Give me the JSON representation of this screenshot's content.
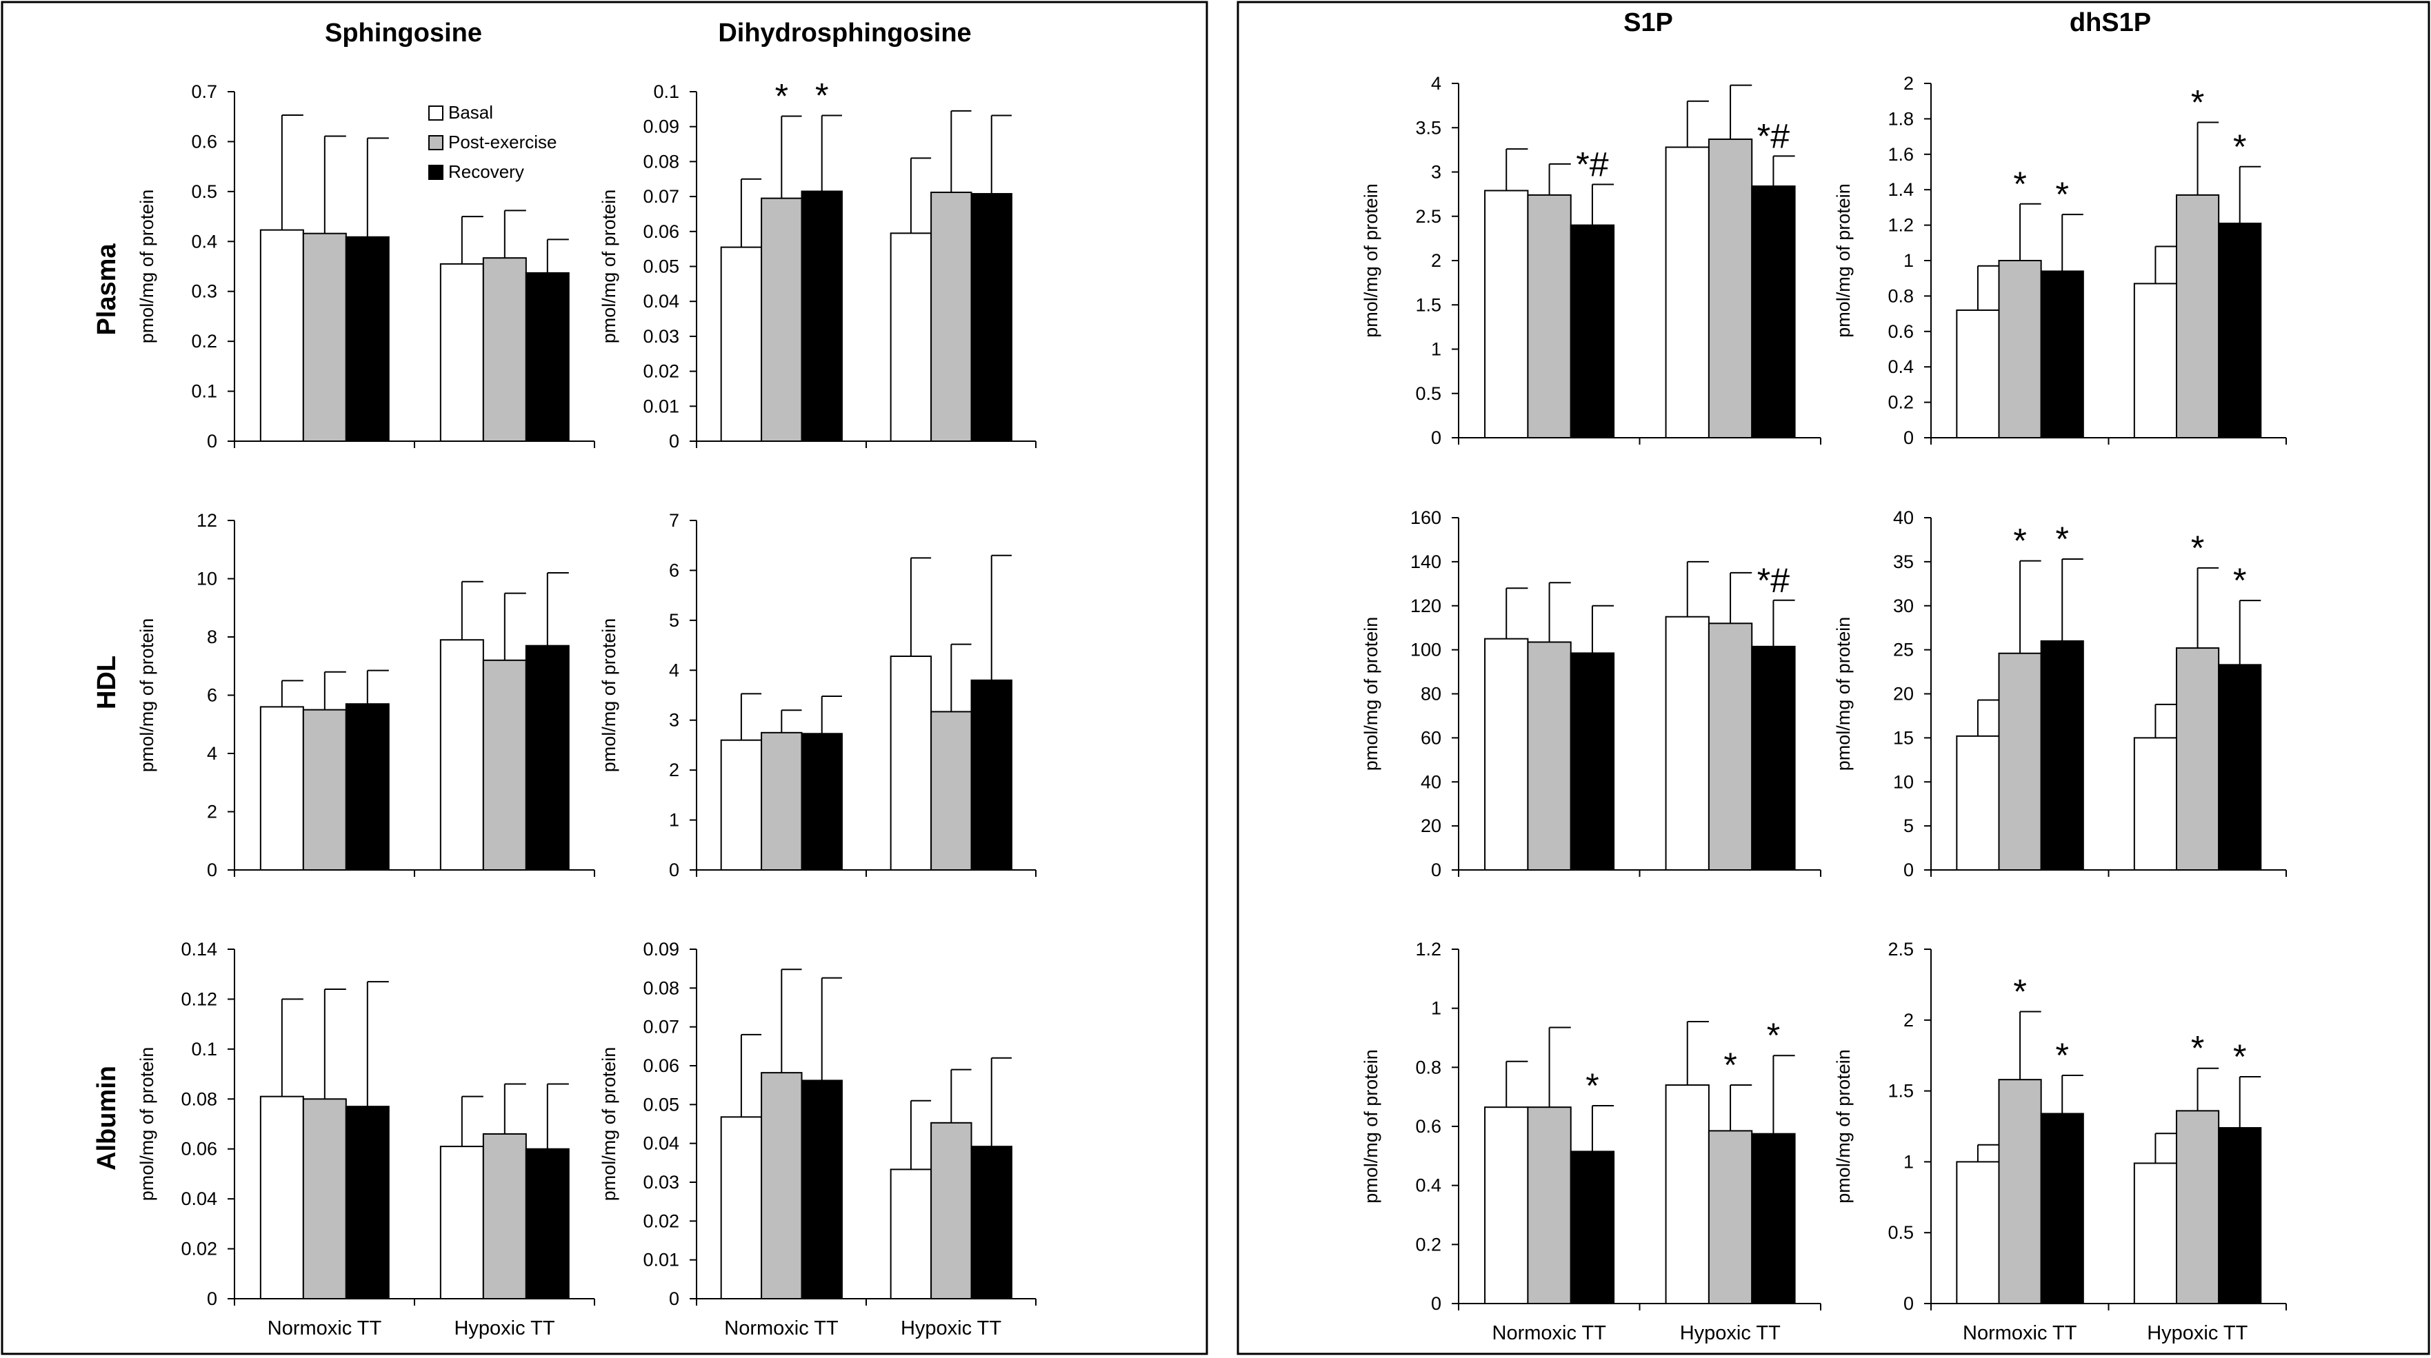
{
  "legend": [
    "Basal",
    "Post-exercise",
    "Recovery"
  ],
  "bar_colors": [
    "#ffffff",
    "#bebebe",
    "#000000"
  ],
  "ylabel": "pmol/mg of protein",
  "categories": [
    "Normoxic TT",
    "Hypoxic TT"
  ],
  "row_labels": [
    "Plasma",
    "HDL",
    "Albumin"
  ],
  "column_titles": [
    "Sphingosine",
    "Dihydrosphingosine",
    "S1P",
    "dhS1P"
  ],
  "chart_data": [
    {
      "type": "bar",
      "column": "Sphingosine",
      "row": "Plasma",
      "ylim": [
        0,
        0.7
      ],
      "yticks": [
        "0",
        "0.1",
        "0.2",
        "0.3",
        "0.4",
        "0.5",
        "0.6",
        "0.7"
      ],
      "series": [
        {
          "name": "Basal",
          "values": [
            0.423,
            0.355
          ],
          "errors": [
            0.23,
            0.095
          ]
        },
        {
          "name": "Post-exercise",
          "values": [
            0.416,
            0.367
          ],
          "errors": [
            0.195,
            0.095
          ]
        },
        {
          "name": "Recovery",
          "values": [
            0.409,
            0.337
          ],
          "errors": [
            0.198,
            0.067
          ]
        }
      ],
      "annotations": []
    },
    {
      "type": "bar",
      "column": "Dihydrosphingosine",
      "row": "Plasma",
      "ylim": [
        0,
        0.1
      ],
      "yticks": [
        "0",
        "0.01",
        "0.02",
        "0.03",
        "0.04",
        "0.05",
        "0.06",
        "0.07",
        "0.08",
        "0.09",
        "0.1"
      ],
      "series": [
        {
          "name": "Basal",
          "values": [
            0.0555,
            0.0595
          ],
          "errors": [
            0.0195,
            0.0215
          ]
        },
        {
          "name": "Post-exercise",
          "values": [
            0.0695,
            0.0712
          ],
          "errors": [
            0.0235,
            0.0233
          ]
        },
        {
          "name": "Recovery",
          "values": [
            0.0715,
            0.0708
          ],
          "errors": [
            0.0217,
            0.0224
          ]
        }
      ],
      "annotations": [
        {
          "group": 0,
          "bar": 1,
          "text": "*"
        },
        {
          "group": 0,
          "bar": 2,
          "text": "*"
        }
      ]
    },
    {
      "type": "bar",
      "column": "Sphingosine",
      "row": "HDL",
      "ylim": [
        0,
        12
      ],
      "yticks": [
        "0",
        "2",
        "4",
        "6",
        "8",
        "10",
        "12"
      ],
      "series": [
        {
          "name": "Basal",
          "values": [
            5.6,
            7.9
          ],
          "errors": [
            0.9,
            2.0
          ]
        },
        {
          "name": "Post-exercise",
          "values": [
            5.5,
            7.2
          ],
          "errors": [
            1.3,
            2.3
          ]
        },
        {
          "name": "Recovery",
          "values": [
            5.7,
            7.7
          ],
          "errors": [
            1.15,
            2.5
          ]
        }
      ],
      "annotations": []
    },
    {
      "type": "bar",
      "column": "Dihydrosphingosine",
      "row": "HDL",
      "ylim": [
        0,
        7
      ],
      "yticks": [
        "0",
        "1",
        "2",
        "3",
        "4",
        "5",
        "6",
        "7"
      ],
      "series": [
        {
          "name": "Basal",
          "values": [
            2.6,
            4.28
          ],
          "errors": [
            0.93,
            1.97
          ]
        },
        {
          "name": "Post-exercise",
          "values": [
            2.75,
            3.17
          ],
          "errors": [
            0.45,
            1.35
          ]
        },
        {
          "name": "Recovery",
          "values": [
            2.73,
            3.8
          ],
          "errors": [
            0.75,
            2.5
          ]
        }
      ],
      "annotations": []
    },
    {
      "type": "bar",
      "column": "Sphingosine",
      "row": "Albumin",
      "ylim": [
        0,
        0.14
      ],
      "yticks": [
        "0",
        "0.02",
        "0.04",
        "0.06",
        "0.08",
        "0.1",
        "0.12",
        "0.14"
      ],
      "series": [
        {
          "name": "Basal",
          "values": [
            0.081,
            0.061
          ],
          "errors": [
            0.039,
            0.02
          ]
        },
        {
          "name": "Post-exercise",
          "values": [
            0.08,
            0.066
          ],
          "errors": [
            0.044,
            0.02
          ]
        },
        {
          "name": "Recovery",
          "values": [
            0.077,
            0.06
          ],
          "errors": [
            0.05,
            0.026
          ]
        }
      ],
      "annotations": []
    },
    {
      "type": "bar",
      "column": "Dihydrosphingosine",
      "row": "Albumin",
      "ylim": [
        0,
        0.09
      ],
      "yticks": [
        "0",
        "0.01",
        "0.02",
        "0.03",
        "0.04",
        "0.05",
        "0.06",
        "0.07",
        "0.08",
        "0.09"
      ],
      "series": [
        {
          "name": "Basal",
          "values": [
            0.0468,
            0.0333
          ],
          "errors": [
            0.0212,
            0.0177
          ]
        },
        {
          "name": "Post-exercise",
          "values": [
            0.0582,
            0.0453
          ],
          "errors": [
            0.0266,
            0.0137
          ]
        },
        {
          "name": "Recovery",
          "values": [
            0.0562,
            0.0392
          ],
          "errors": [
            0.0264,
            0.0228
          ]
        }
      ],
      "annotations": []
    },
    {
      "type": "bar",
      "column": "S1P",
      "row": "Plasma",
      "ylim": [
        0,
        4
      ],
      "yticks": [
        "0",
        "0.5",
        "1",
        "1.5",
        "2",
        "2.5",
        "3",
        "3.5",
        "4"
      ],
      "series": [
        {
          "name": "Basal",
          "values": [
            2.79,
            3.28
          ],
          "errors": [
            0.47,
            0.52
          ]
        },
        {
          "name": "Post-exercise",
          "values": [
            2.74,
            3.37
          ],
          "errors": [
            0.35,
            0.61
          ]
        },
        {
          "name": "Recovery",
          "values": [
            2.4,
            2.84
          ],
          "errors": [
            0.46,
            0.34
          ]
        }
      ],
      "annotations": [
        {
          "group": 0,
          "bar": 2,
          "text": "*#"
        },
        {
          "group": 1,
          "bar": 2,
          "text": "*#"
        }
      ]
    },
    {
      "type": "bar",
      "column": "dhS1P",
      "row": "Plasma",
      "ylim": [
        0,
        2
      ],
      "yticks": [
        "0",
        "0.2",
        "0.4",
        "0.6",
        "0.8",
        "1",
        "1.2",
        "1.4",
        "1.6",
        "1.8",
        "2"
      ],
      "series": [
        {
          "name": "Basal",
          "values": [
            0.72,
            0.87
          ],
          "errors": [
            0.25,
            0.21
          ]
        },
        {
          "name": "Post-exercise",
          "values": [
            1.0,
            1.37
          ],
          "errors": [
            0.32,
            0.41
          ]
        },
        {
          "name": "Recovery",
          "values": [
            0.94,
            1.21
          ],
          "errors": [
            0.32,
            0.32
          ]
        }
      ],
      "annotations": [
        {
          "group": 0,
          "bar": 1,
          "text": "*"
        },
        {
          "group": 0,
          "bar": 2,
          "text": "*"
        },
        {
          "group": 1,
          "bar": 1,
          "text": "*"
        },
        {
          "group": 1,
          "bar": 2,
          "text": "*"
        }
      ]
    },
    {
      "type": "bar",
      "column": "S1P",
      "row": "HDL",
      "ylim": [
        0,
        160
      ],
      "yticks": [
        "0",
        "20",
        "40",
        "60",
        "80",
        "100",
        "120",
        "140",
        "160"
      ],
      "series": [
        {
          "name": "Basal",
          "values": [
            105,
            115
          ],
          "errors": [
            23,
            25
          ]
        },
        {
          "name": "Post-exercise",
          "values": [
            103.5,
            112
          ],
          "errors": [
            27,
            23
          ]
        },
        {
          "name": "Recovery",
          "values": [
            98.5,
            101.5
          ],
          "errors": [
            21.5,
            21
          ]
        }
      ],
      "annotations": [
        {
          "group": 1,
          "bar": 2,
          "text": "*#"
        }
      ]
    },
    {
      "type": "bar",
      "column": "dhS1P",
      "row": "HDL",
      "ylim": [
        0,
        40
      ],
      "yticks": [
        "0",
        "5",
        "10",
        "15",
        "20",
        "25",
        "30",
        "35",
        "40"
      ],
      "series": [
        {
          "name": "Basal",
          "values": [
            15.2,
            15.0
          ],
          "errors": [
            4.1,
            3.8
          ]
        },
        {
          "name": "Post-exercise",
          "values": [
            24.6,
            25.2
          ],
          "errors": [
            10.5,
            9.1
          ]
        },
        {
          "name": "Recovery",
          "values": [
            26.0,
            23.3
          ],
          "errors": [
            9.3,
            7.3
          ]
        }
      ],
      "annotations": [
        {
          "group": 0,
          "bar": 1,
          "text": "*"
        },
        {
          "group": 0,
          "bar": 2,
          "text": "*"
        },
        {
          "group": 1,
          "bar": 1,
          "text": "*"
        },
        {
          "group": 1,
          "bar": 2,
          "text": "*"
        }
      ]
    },
    {
      "type": "bar",
      "column": "S1P",
      "row": "Albumin",
      "ylim": [
        0,
        1.2
      ],
      "yticks": [
        "0",
        "0.2",
        "0.4",
        "0.6",
        "0.8",
        "1",
        "1.2"
      ],
      "series": [
        {
          "name": "Basal",
          "values": [
            0.665,
            0.74
          ],
          "errors": [
            0.155,
            0.215
          ]
        },
        {
          "name": "Post-exercise",
          "values": [
            0.665,
            0.585
          ],
          "errors": [
            0.27,
            0.155
          ]
        },
        {
          "name": "Recovery",
          "values": [
            0.515,
            0.575
          ],
          "errors": [
            0.155,
            0.265
          ]
        }
      ],
      "annotations": [
        {
          "group": 0,
          "bar": 2,
          "text": "*"
        },
        {
          "group": 1,
          "bar": 1,
          "text": "*"
        },
        {
          "group": 1,
          "bar": 2,
          "text": "*"
        }
      ]
    },
    {
      "type": "bar",
      "column": "dhS1P",
      "row": "Albumin",
      "ylim": [
        0,
        2.5
      ],
      "yticks": [
        "0",
        "0.5",
        "1",
        "1.5",
        "2",
        "2.5"
      ],
      "series": [
        {
          "name": "Basal",
          "values": [
            1.0,
            0.99
          ],
          "errors": [
            0.12,
            0.21
          ]
        },
        {
          "name": "Post-exercise",
          "values": [
            1.58,
            1.36
          ],
          "errors": [
            0.48,
            0.3
          ]
        },
        {
          "name": "Recovery",
          "values": [
            1.34,
            1.24
          ],
          "errors": [
            0.27,
            0.36
          ]
        }
      ],
      "annotations": [
        {
          "group": 0,
          "bar": 1,
          "text": "*"
        },
        {
          "group": 0,
          "bar": 2,
          "text": "*"
        },
        {
          "group": 1,
          "bar": 1,
          "text": "*"
        },
        {
          "group": 1,
          "bar": 2,
          "text": "*"
        }
      ]
    }
  ]
}
